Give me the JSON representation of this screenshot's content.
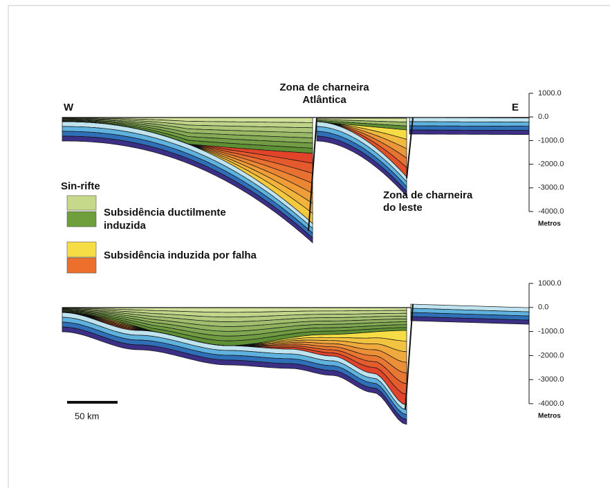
{
  "labels": {
    "west": "W",
    "east": "E"
  },
  "annotations": {
    "atlantic_hinge": [
      "Zona de charneira",
      "Atlântica"
    ],
    "east_hinge": [
      "Zona de charneira",
      "do leste"
    ]
  },
  "legend": {
    "title": "Sin-rifte",
    "items": [
      {
        "lines": [
          "Subsidência ductilmente",
          "induzida"
        ]
      },
      {
        "lines": [
          "Subsidência induzida por falha"
        ]
      }
    ]
  },
  "scales": [
    {
      "ticks": [
        "1000.0",
        "0.0",
        "-1000.0",
        "-2000.0",
        "-3000.0",
        "-4000.0"
      ],
      "unit": "Metros"
    },
    {
      "ticks": [
        "1000.0",
        "0.0",
        "-1000.0",
        "-2000.0",
        "-3000.0",
        "-4000.0"
      ],
      "unit": "Metros"
    }
  ],
  "scale_bar": "50 km"
}
